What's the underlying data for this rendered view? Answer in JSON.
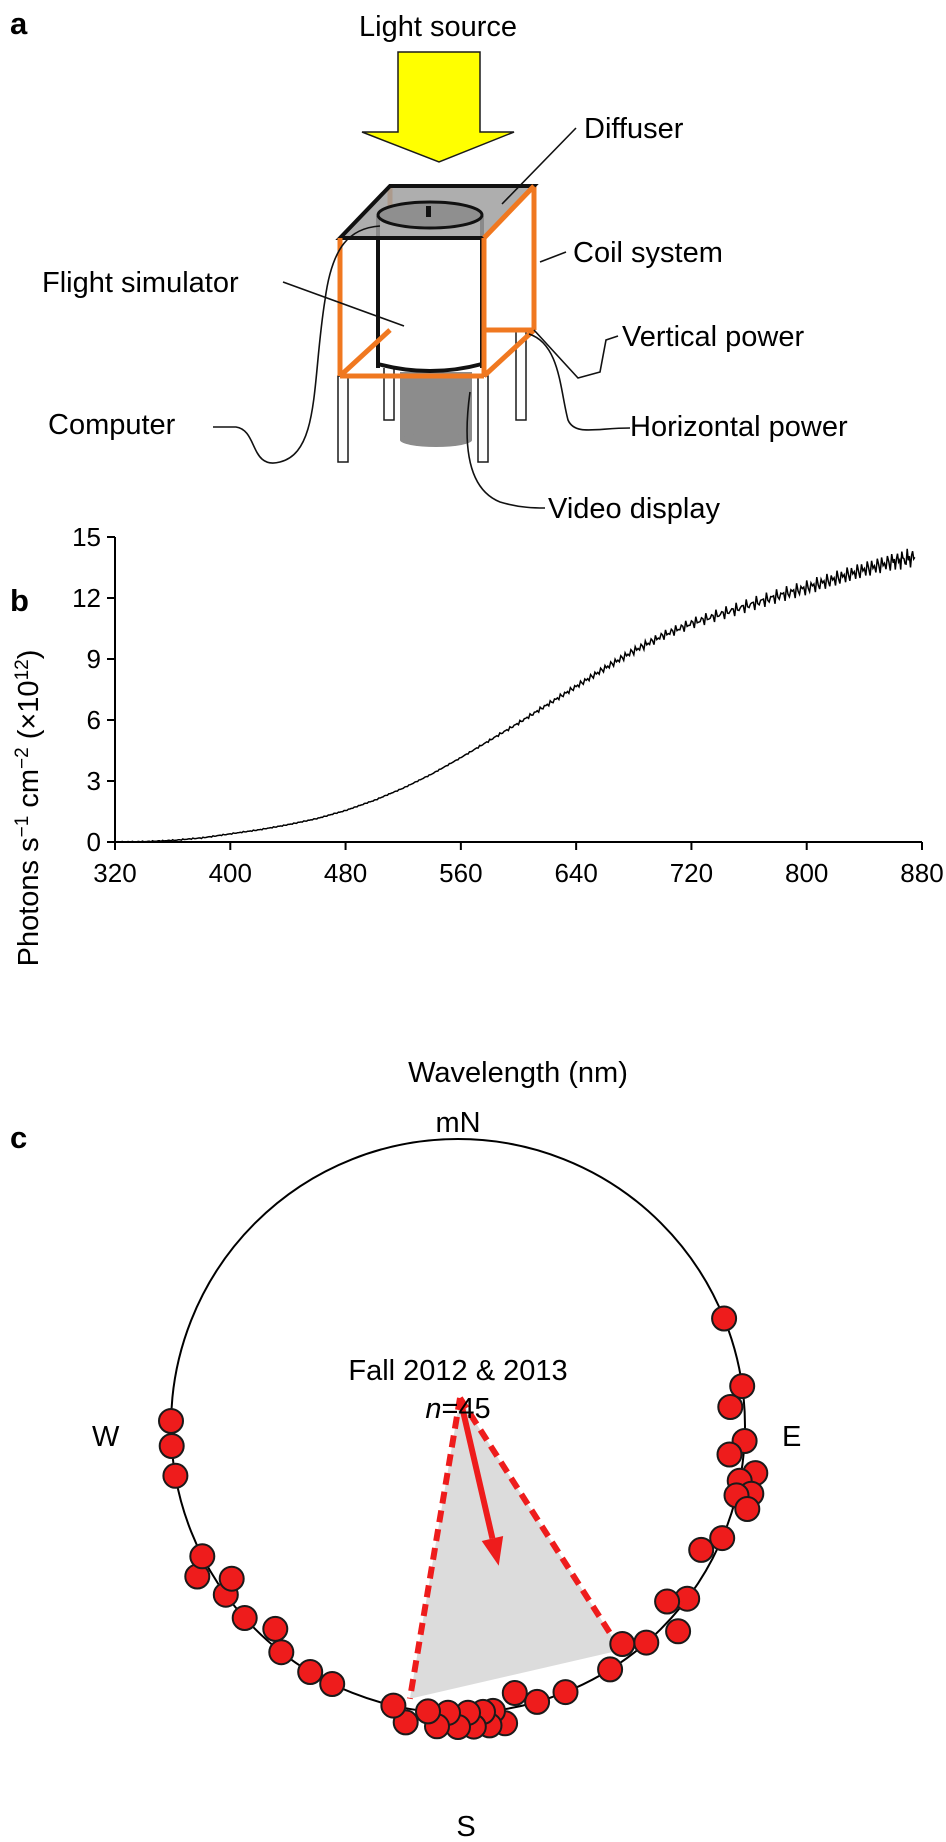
{
  "panel_a": {
    "letter": "a",
    "labels": {
      "light_source": "Light source",
      "diffuser": "Diffuser",
      "coil_system": "Coil system",
      "flight_simulator": "Flight simulator",
      "vertical_power": "Vertical power",
      "computer": "Computer",
      "horizontal_power": "Horizontal power",
      "video_display": "Video display"
    },
    "colors": {
      "arrow": "#ffff00",
      "coil": "#f07820",
      "display": "#8c8c8c",
      "diffuser": "#a0a0a0"
    }
  },
  "panel_b": {
    "letter": "b",
    "ylabel_main": "Photons s",
    "ylabel_sup1": "−1",
    "ylabel_mid": " cm",
    "ylabel_sup2": "−2",
    "ylabel_tail": " (×10",
    "ylabel_sup3": "12",
    "ylabel_end": ")",
    "xlabel": "Wavelength (nm)"
  },
  "panel_c": {
    "letter": "c",
    "north": "mN",
    "south": "S",
    "east": "E",
    "west": "W",
    "title": "Fall 2012 & 2013",
    "n_italic": "n",
    "n_rest": "=45",
    "colors": {
      "dot": "#ee1c1c",
      "arrow": "#ee1c1c",
      "cone": "#dcdcdc"
    },
    "mean_direction_deg": 167,
    "mean_vector_length": 0.6,
    "ci_deg": [
      144,
      190
    ],
    "bearings_deg": [
      68,
      82,
      86,
      93,
      96,
      99,
      101,
      103,
      106,
      113,
      117,
      127,
      130,
      133,
      139,
      143,
      148,
      158,
      164,
      168,
      171,
      173,
      174,
      175,
      177,
      178,
      180,
      182,
      184,
      186,
      190,
      193,
      206,
      211,
      218,
      222,
      228,
      234,
      236,
      240,
      243,
      266,
      271,
      104,
      260
    ]
  },
  "chart_data": {
    "type": "line",
    "title": "",
    "xlabel": "Wavelength (nm)",
    "ylabel": "Photons s−1 cm−2 (×10^12)",
    "xlim": [
      320,
      880
    ],
    "ylim": [
      0,
      15
    ],
    "xticks": [
      320,
      400,
      480,
      560,
      640,
      720,
      800,
      880
    ],
    "yticks": [
      0,
      3,
      6,
      9,
      12,
      15
    ],
    "grid": false,
    "series": [
      {
        "x": [
          320,
          340,
          360,
          380,
          400,
          420,
          440,
          460,
          480,
          500,
          520,
          540,
          560,
          580,
          600,
          620,
          640,
          660,
          680,
          700,
          720,
          740,
          760,
          780,
          800,
          820,
          840,
          860,
          875
        ],
        "values": [
          0.0,
          0.02,
          0.08,
          0.2,
          0.4,
          0.6,
          0.85,
          1.15,
          1.55,
          2.05,
          2.65,
          3.35,
          4.15,
          5.0,
          5.85,
          6.75,
          7.65,
          8.55,
          9.4,
          10.15,
          10.75,
          11.2,
          11.65,
          12.1,
          12.5,
          12.95,
          13.4,
          13.8,
          14.0
        ]
      }
    ]
  }
}
